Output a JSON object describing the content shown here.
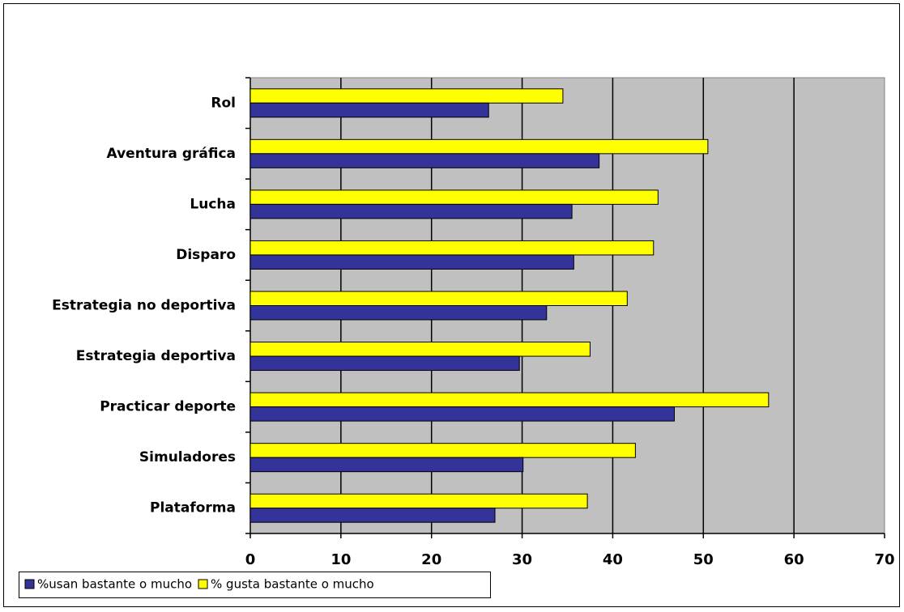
{
  "chart_data": {
    "type": "hbar",
    "categories": [
      "Rol",
      "Aventura gráfica",
      "Lucha",
      "Disparo",
      "Estrategia no deportiva",
      "Estrategia deportiva",
      "Practicar deporte",
      "Simuladores",
      "Plataforma"
    ],
    "series": [
      {
        "name": "%usan bastante o mucho",
        "color": "#333399",
        "values": [
          26.3,
          38.5,
          35.5,
          35.7,
          32.7,
          29.7,
          46.8,
          30.1,
          27.0
        ]
      },
      {
        "name": "% gusta bastante o mucho",
        "color": "#ffff00",
        "values": [
          34.5,
          50.5,
          45.0,
          44.5,
          41.6,
          37.5,
          57.2,
          42.5,
          37.2
        ]
      }
    ],
    "xlim": [
      0,
      70
    ],
    "xticks": [
      0,
      10,
      20,
      30,
      40,
      50,
      60,
      70
    ],
    "grid": true,
    "legend": "bottom-left"
  }
}
